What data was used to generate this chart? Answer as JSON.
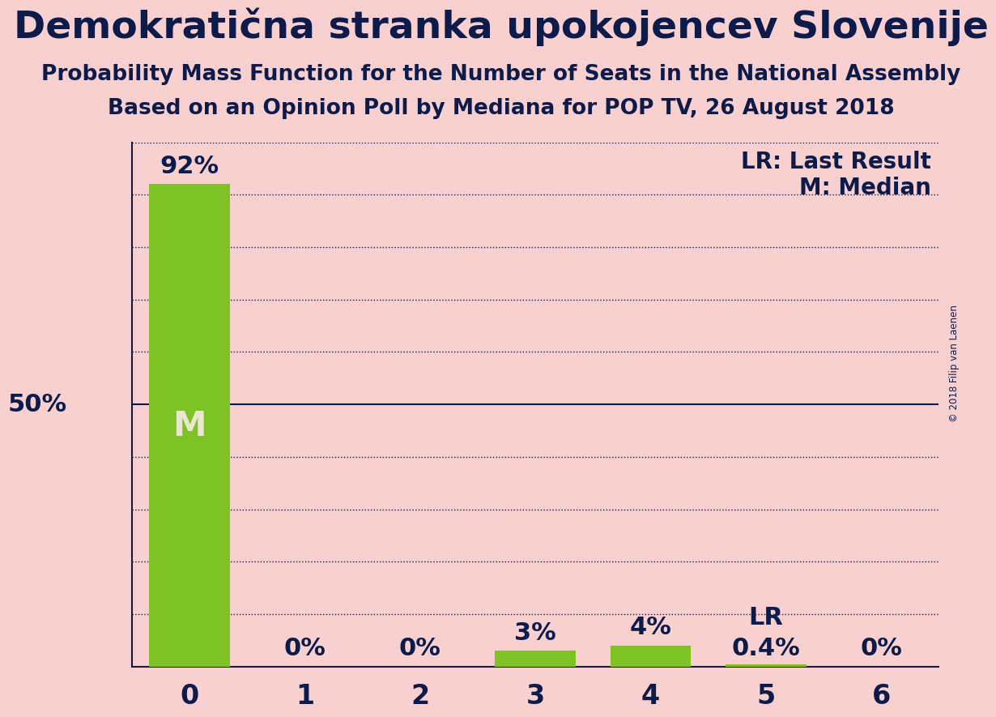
{
  "title": "Demokratična stranka upokojencev Slovenije",
  "subtitle1": "Probability Mass Function for the Number of Seats in the National Assembly",
  "subtitle2": "Based on an Opinion Poll by Mediana for POP TV, 26 August 2018",
  "copyright": "© 2018 Filip van Laenen",
  "categories": [
    0,
    1,
    2,
    3,
    4,
    5,
    6
  ],
  "values": [
    0.92,
    0.0,
    0.0,
    0.03,
    0.04,
    0.004,
    0.0
  ],
  "value_labels": [
    "92%",
    "0%",
    "0%",
    "3%",
    "4%",
    "0.4%",
    "0%"
  ],
  "bar_color": "#7ec225",
  "background_color": "#f9d0d0",
  "text_color": "#0d1b4b",
  "median_seat": 0,
  "last_result_seat": 5,
  "legend_lr": "LR: Last Result",
  "legend_m": "M: Median",
  "ylabel_50": "50%",
  "ylim": [
    0,
    1.0
  ],
  "fifty_pct_line": 0.5,
  "grid_lines": [
    0.1,
    0.2,
    0.3,
    0.4,
    0.5,
    0.6,
    0.7,
    0.8,
    0.9,
    1.0
  ],
  "title_fontsize": 34,
  "subtitle_fontsize": 19,
  "label_fontsize": 22,
  "tick_fontsize": 24,
  "annotation_fontsize": 22,
  "legend_fontsize": 20,
  "m_color": "#e8e8d0"
}
